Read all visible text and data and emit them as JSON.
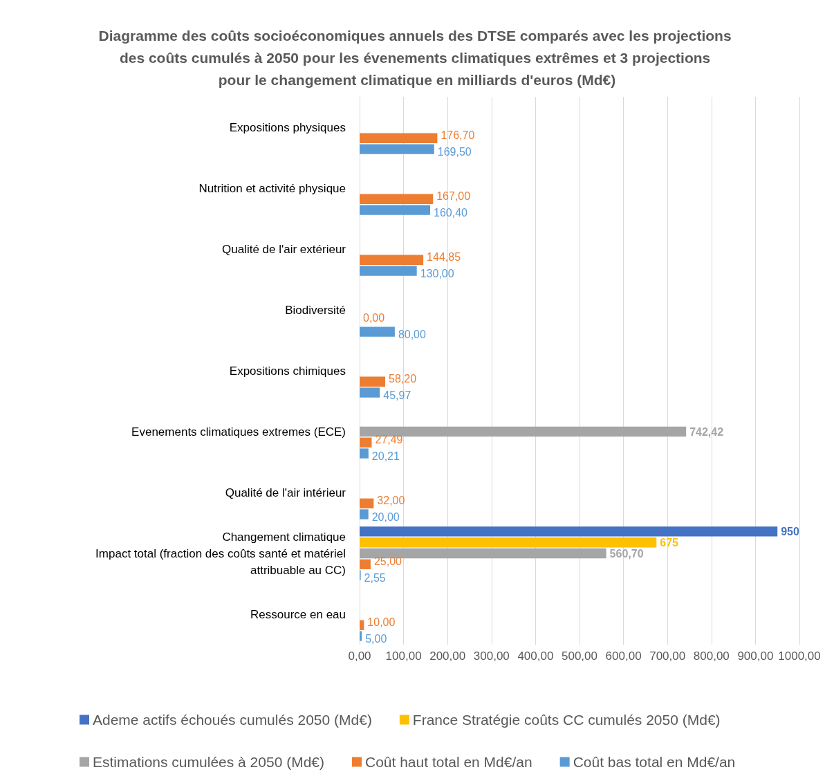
{
  "chart_data": {
    "type": "bar",
    "orientation": "horizontal",
    "title": "Diagramme des coûts socioéconomiques annuels des DTSE comparés avec les projections des coûts cumulés à 2050 pour les évenements climatiques extrêmes et 3 projections pour le changement climatique en milliards d'euros (Md€)",
    "categories": [
      "Expositions physiques",
      "Nutrition et activité physique",
      "Qualité de l'air extérieur",
      "Biodiversité",
      "Expositions chimiques",
      "Evenements climatiques extremes (ECE)",
      "Qualité de l'air intérieur",
      "Changement climatique\nImpact total (fraction des coûts santé et matériel\nattribuable au CC)",
      "Ressource en eau"
    ],
    "series": [
      {
        "name": "Ademe actifs échoués cumulés 2050 (Md€)",
        "color": "#4472c4",
        "values": [
          null,
          null,
          null,
          null,
          null,
          null,
          null,
          950,
          null
        ],
        "value_labels": [
          null,
          null,
          null,
          null,
          null,
          null,
          null,
          "950",
          null
        ]
      },
      {
        "name": "France Stratégie coûts CC cumulés 2050 (Md€)",
        "color": "#ffc000",
        "values": [
          null,
          null,
          null,
          null,
          null,
          null,
          null,
          675,
          null
        ],
        "value_labels": [
          null,
          null,
          null,
          null,
          null,
          null,
          null,
          "675",
          null
        ]
      },
      {
        "name": "Estimations cumulées à 2050 (Md€)",
        "color": "#a5a5a5",
        "values": [
          null,
          null,
          null,
          null,
          null,
          742.42,
          null,
          560.7,
          null
        ],
        "value_labels": [
          null,
          null,
          null,
          null,
          null,
          "742,42",
          null,
          "560,70",
          null
        ]
      },
      {
        "name": "Coût haut total en Md€/an",
        "color": "#ed7d31",
        "values": [
          176.7,
          167.0,
          144.85,
          0.0,
          58.2,
          27.49,
          32.0,
          25.0,
          10.0
        ],
        "value_labels": [
          "176,70",
          "167,00",
          "144,85",
          "0,00",
          "58,20",
          "27,49",
          "32,00",
          "25,00",
          "10,00"
        ]
      },
      {
        "name": "Coût bas total en Md€/an",
        "color": "#5b9bd5",
        "values": [
          169.5,
          160.4,
          130.0,
          80.0,
          45.97,
          20.21,
          20.0,
          2.55,
          5.0
        ],
        "value_labels": [
          "169,50",
          "160,40",
          "130,00",
          "80,00",
          "45,97",
          "20,21",
          "20,00",
          "2,55",
          "5,00"
        ]
      }
    ],
    "xlim": [
      0,
      1000
    ],
    "xticks": [
      {
        "value": 0,
        "label": "0,00"
      },
      {
        "value": 100,
        "label": "100,00"
      },
      {
        "value": 200,
        "label": "200,00"
      },
      {
        "value": 300,
        "label": "300,00"
      },
      {
        "value": 400,
        "label": "400,00"
      },
      {
        "value": 500,
        "label": "500,00"
      },
      {
        "value": 600,
        "label": "600,00"
      },
      {
        "value": 700,
        "label": "700,00"
      },
      {
        "value": 800,
        "label": "800,00"
      },
      {
        "value": 900,
        "label": "900,00"
      },
      {
        "value": 1000,
        "label": "1000,00"
      }
    ],
    "grid": "x",
    "legend": "bottom"
  }
}
